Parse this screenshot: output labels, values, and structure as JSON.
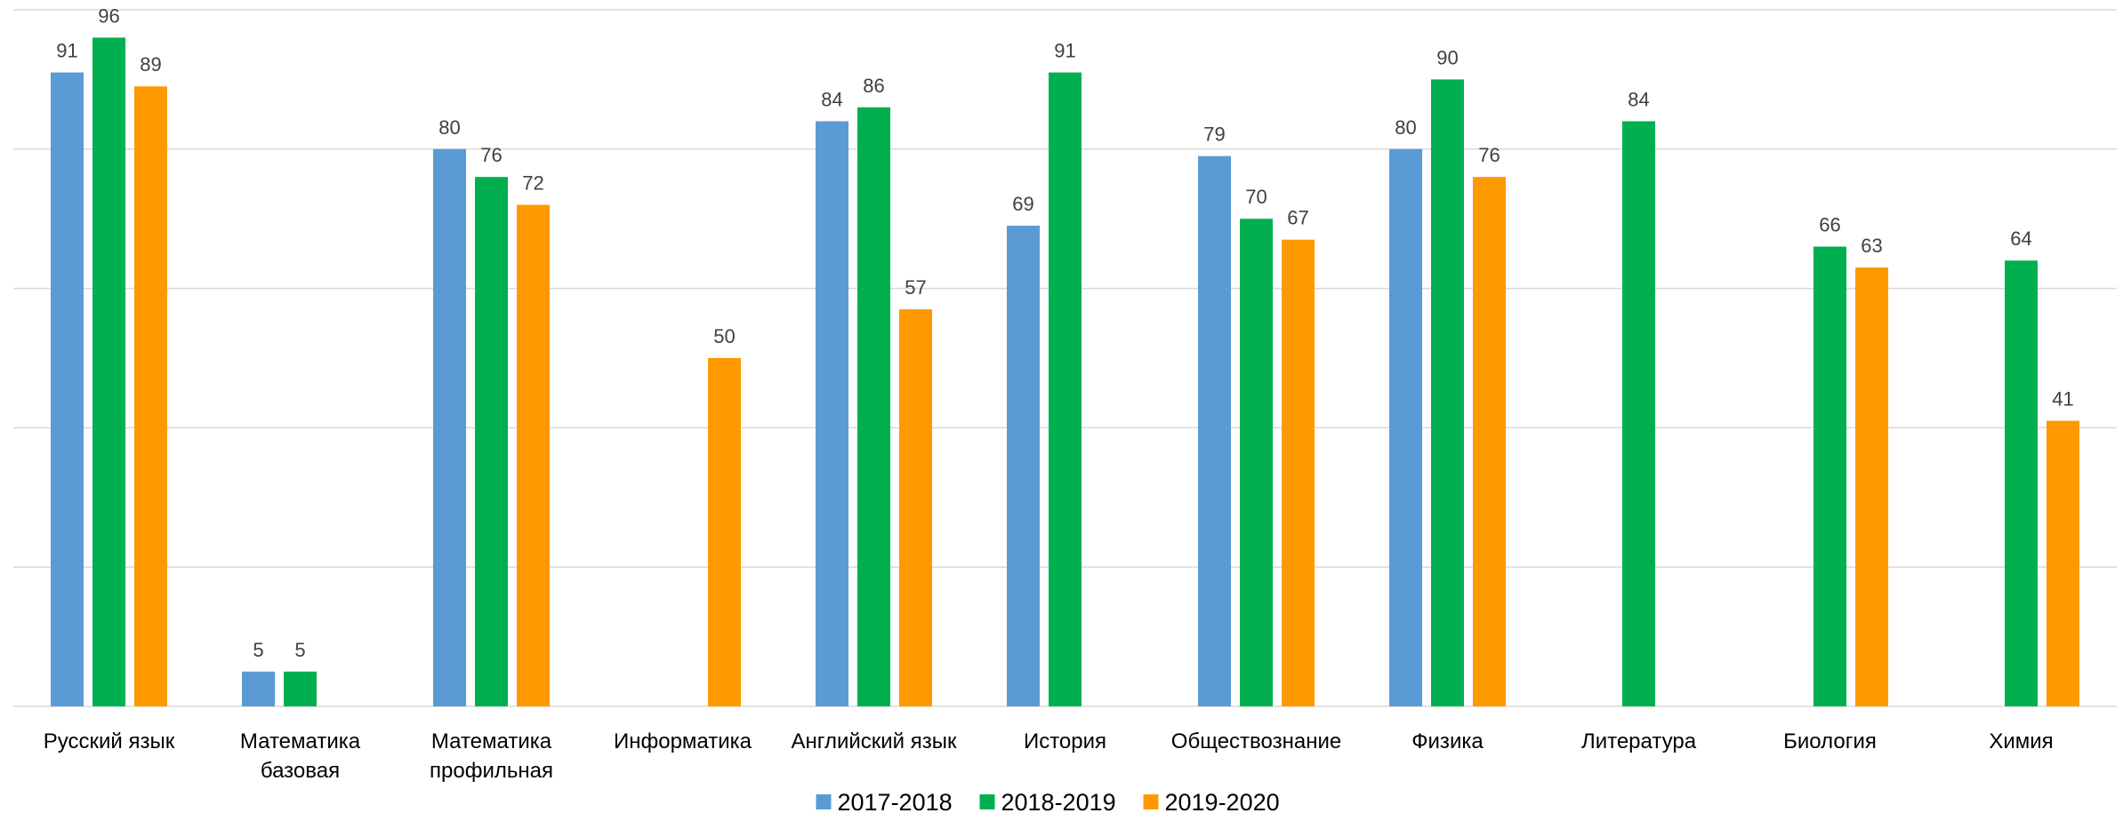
{
  "chart_data": {
    "type": "bar",
    "categories": [
      [
        "Русский язык"
      ],
      [
        "Математика",
        "базовая"
      ],
      [
        "Математика",
        "профильная"
      ],
      [
        "Информатика"
      ],
      [
        "Английский язык"
      ],
      [
        "История"
      ],
      [
        "Обществознание"
      ],
      [
        "Физика"
      ],
      [
        "Литература"
      ],
      [
        "Биология"
      ],
      [
        "Химия"
      ]
    ],
    "series": [
      {
        "name": "2017-2018",
        "color": "#5b9bd5",
        "values": [
          91,
          5,
          80,
          null,
          84,
          69,
          79,
          80,
          null,
          null,
          null
        ]
      },
      {
        "name": "2018-2019",
        "color": "#00b050",
        "values": [
          96,
          5,
          76,
          null,
          86,
          91,
          70,
          90,
          84,
          66,
          64
        ]
      },
      {
        "name": "2019-2020",
        "color": "#ff9900",
        "values": [
          89,
          null,
          72,
          50,
          57,
          null,
          67,
          76,
          null,
          63,
          41
        ]
      }
    ],
    "ylim": [
      0,
      100
    ],
    "grid": true,
    "legend_position": "bottom"
  }
}
